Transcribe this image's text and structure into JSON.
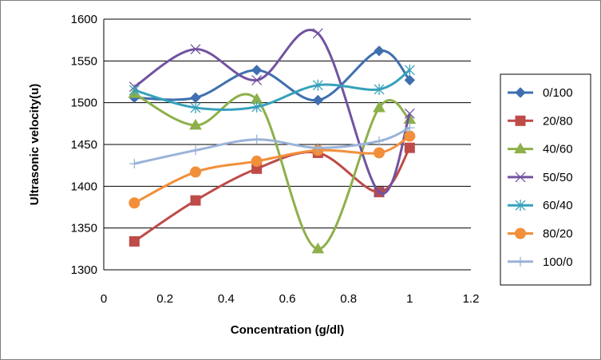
{
  "chart_data": {
    "type": "line",
    "title": "",
    "xlabel": "Concentration (g/dl)",
    "ylabel": "Ultrasonic velocity(u)",
    "xlim": [
      0,
      1.2
    ],
    "ylim": [
      1300,
      1600
    ],
    "x_ticks": [
      "0",
      "0.2",
      "0.4",
      "0.6",
      "0.8",
      "1",
      "1.2"
    ],
    "y_ticks": [
      "1300",
      "1350",
      "1400",
      "1450",
      "1500",
      "1550",
      "1600"
    ],
    "x": [
      0.1,
      0.3,
      0.5,
      0.7,
      0.9,
      1.0
    ],
    "legend_position": "right",
    "series": [
      {
        "name": "0/100",
        "values": [
          1506,
          1506,
          1539,
          1503,
          1562,
          1527
        ],
        "color": "#3f6fb0",
        "marker": "diamond"
      },
      {
        "name": "20/80",
        "values": [
          1334,
          1383,
          1421,
          1440,
          1393,
          1446
        ],
        "color": "#be4b48",
        "marker": "square"
      },
      {
        "name": "40/60",
        "values": [
          1511,
          1473,
          1504,
          1325,
          1494,
          1480
        ],
        "color": "#8db04a",
        "marker": "triangle"
      },
      {
        "name": "50/50",
        "values": [
          1519,
          1564,
          1527,
          1583,
          1393,
          1487
        ],
        "color": "#7153a0",
        "marker": "x"
      },
      {
        "name": "60/40",
        "values": [
          1515,
          1494,
          1495,
          1521,
          1516,
          1539
        ],
        "color": "#37a1bb",
        "marker": "asterisk"
      },
      {
        "name": "80/20",
        "values": [
          1380,
          1417,
          1430,
          1443,
          1440,
          1460
        ],
        "color": "#f28f3a",
        "marker": "circle"
      },
      {
        "name": "100/0",
        "values": [
          1427,
          1443,
          1456,
          1446,
          1454,
          1470
        ],
        "color": "#9ab3d8",
        "marker": "plus"
      }
    ]
  }
}
